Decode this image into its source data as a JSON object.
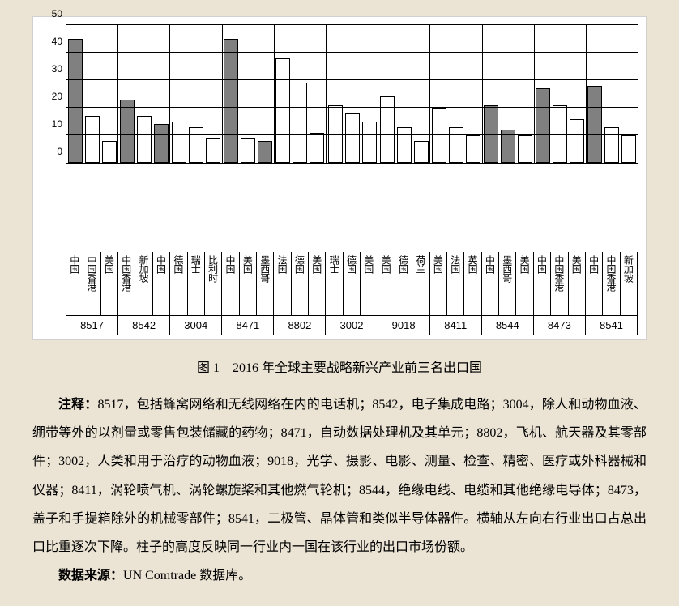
{
  "chart": {
    "type": "bar",
    "ylim": [
      0,
      50
    ],
    "ytick_step": 10,
    "yticks": [
      0,
      10,
      20,
      30,
      40,
      50
    ],
    "background_color": "#ffffff",
    "grid_color": "#000000",
    "bar_border": "#000000",
    "bar_gray": "#808080",
    "bar_white": "#ffffff",
    "label_fontsize": 12,
    "groups": [
      {
        "code": "8517",
        "countries": [
          "中国",
          "中国香港",
          "美国"
        ],
        "values": [
          45,
          17,
          8
        ],
        "shaded": [
          true,
          false,
          false
        ]
      },
      {
        "code": "8542",
        "countries": [
          "中国香港",
          "新加坡",
          "中国"
        ],
        "values": [
          23,
          17,
          14
        ],
        "shaded": [
          true,
          false,
          true
        ]
      },
      {
        "code": "3004",
        "countries": [
          "德国",
          "瑞士",
          "比利时"
        ],
        "values": [
          15,
          13,
          9
        ],
        "shaded": [
          false,
          false,
          false
        ]
      },
      {
        "code": "8471",
        "countries": [
          "中国",
          "美国",
          "墨西哥"
        ],
        "values": [
          45,
          9,
          8
        ],
        "shaded": [
          true,
          false,
          true
        ]
      },
      {
        "code": "8802",
        "countries": [
          "法国",
          "德国",
          "美国"
        ],
        "values": [
          38,
          29,
          11
        ],
        "shaded": [
          false,
          false,
          false
        ]
      },
      {
        "code": "3002",
        "countries": [
          "瑞士",
          "德国",
          "美国"
        ],
        "values": [
          21,
          18,
          15
        ],
        "shaded": [
          false,
          false,
          false
        ]
      },
      {
        "code": "9018",
        "countries": [
          "美国",
          "德国",
          "荷兰"
        ],
        "values": [
          24,
          13,
          8
        ],
        "shaded": [
          false,
          false,
          false
        ]
      },
      {
        "code": "8411",
        "countries": [
          "美国",
          "法国",
          "英国"
        ],
        "values": [
          20,
          13,
          10
        ],
        "shaded": [
          false,
          false,
          false
        ]
      },
      {
        "code": "8544",
        "countries": [
          "中国",
          "墨西哥",
          "美国"
        ],
        "values": [
          21,
          12,
          10
        ],
        "shaded": [
          true,
          true,
          false
        ]
      },
      {
        "code": "8473",
        "countries": [
          "中国",
          "中国香港",
          "美国"
        ],
        "values": [
          27,
          21,
          16
        ],
        "shaded": [
          true,
          false,
          false
        ]
      },
      {
        "code": "8541",
        "countries": [
          "中国",
          "中国香港",
          "新加坡"
        ],
        "values": [
          28,
          13,
          10
        ],
        "shaded": [
          true,
          false,
          false
        ]
      }
    ]
  },
  "caption": "图 1　2016 年全球主要战略新兴产业前三名出口国",
  "notes_label": "注释：",
  "notes_body": "8517，包括蜂窝网络和无线网络在内的电话机；8542，电子集成电路；3004，除人和动物血液、绷带等外的以剂量或零售包装储藏的药物；8471，自动数据处理机及其单元；8802，飞机、航天器及其零部件；3002，人类和用于治疗的动物血液；9018，光学、摄影、电影、测量、检查、精密、医疗或外科器械和仪器；8411，涡轮喷气机、涡轮螺旋桨和其他燃气轮机；8544，绝缘电线、电缆和其他绝缘电导体；8473，盖子和手提箱除外的机械零部件；8541，二极管、晶体管和类似半导体器件。横轴从左向右行业出口占总出口比重逐次下降。柱子的高度反映同一行业内一国在该行业的出口市场份额。",
  "source_label": "数据来源：",
  "source_body": "UN Comtrade 数据库。"
}
